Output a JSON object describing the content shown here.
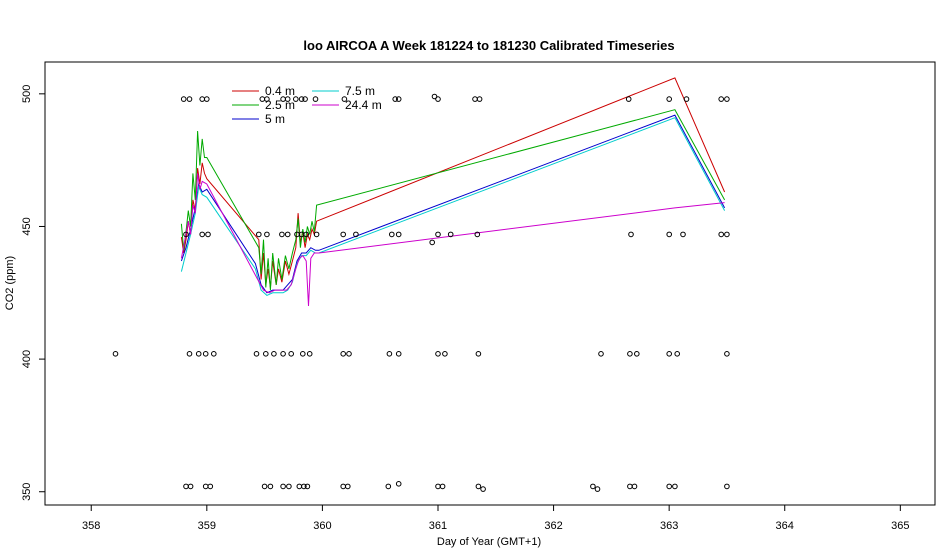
{
  "chart_data": {
    "type": "line",
    "title": "loo AIRCOA A  Week 181224 to 181230  Calibrated Timeseries",
    "xlabel": "Day of Year (GMT+1)",
    "ylabel": "CO2 (ppm)",
    "xlim": [
      357.6,
      365.3
    ],
    "ylim": [
      345,
      512
    ],
    "x_ticks": [
      358,
      359,
      360,
      361,
      362,
      363,
      364,
      365
    ],
    "y_ticks": [
      350,
      400,
      450,
      500
    ],
    "legend_position": "top-left",
    "series": [
      {
        "name": "0.4 m",
        "color": "#cc0000",
        "points": [
          [
            358.78,
            446
          ],
          [
            358.8,
            440
          ],
          [
            358.82,
            445
          ],
          [
            358.84,
            452
          ],
          [
            358.86,
            447
          ],
          [
            358.88,
            460
          ],
          [
            358.9,
            456
          ],
          [
            358.92,
            472
          ],
          [
            358.94,
            466
          ],
          [
            358.96,
            474
          ],
          [
            358.98,
            470
          ],
          [
            359.0,
            468
          ],
          [
            359.45,
            445
          ],
          [
            359.47,
            430
          ],
          [
            359.49,
            440
          ],
          [
            359.51,
            428
          ],
          [
            359.53,
            434
          ],
          [
            359.55,
            427
          ],
          [
            359.57,
            437
          ],
          [
            359.6,
            428
          ],
          [
            359.62,
            434
          ],
          [
            359.65,
            429
          ],
          [
            359.68,
            437
          ],
          [
            359.71,
            432
          ],
          [
            359.74,
            437
          ],
          [
            359.77,
            442
          ],
          [
            359.79,
            455
          ],
          [
            359.81,
            444
          ],
          [
            359.83,
            448
          ],
          [
            359.85,
            442
          ],
          [
            359.87,
            447
          ],
          [
            359.89,
            445
          ],
          [
            359.91,
            449
          ],
          [
            359.93,
            447
          ],
          [
            359.95,
            452
          ],
          [
            363.05,
            506
          ],
          [
            363.48,
            463
          ]
        ]
      },
      {
        "name": "2.5 m",
        "color": "#00aa00",
        "points": [
          [
            358.78,
            451
          ],
          [
            358.8,
            441
          ],
          [
            358.82,
            448
          ],
          [
            358.84,
            456
          ],
          [
            358.86,
            450
          ],
          [
            358.88,
            470
          ],
          [
            358.9,
            460
          ],
          [
            358.92,
            486
          ],
          [
            358.94,
            473
          ],
          [
            358.96,
            483
          ],
          [
            358.98,
            476
          ],
          [
            359.0,
            476
          ],
          [
            359.45,
            442
          ],
          [
            359.47,
            432
          ],
          [
            359.49,
            445
          ],
          [
            359.51,
            427
          ],
          [
            359.53,
            438
          ],
          [
            359.55,
            426
          ],
          [
            359.57,
            440
          ],
          [
            359.6,
            428
          ],
          [
            359.62,
            438
          ],
          [
            359.65,
            430
          ],
          [
            359.68,
            439
          ],
          [
            359.71,
            434
          ],
          [
            359.74,
            440
          ],
          [
            359.77,
            445
          ],
          [
            359.79,
            453
          ],
          [
            359.81,
            442
          ],
          [
            359.83,
            449
          ],
          [
            359.85,
            444
          ],
          [
            359.87,
            450
          ],
          [
            359.89,
            447
          ],
          [
            359.91,
            452
          ],
          [
            359.93,
            448
          ],
          [
            359.95,
            458
          ],
          [
            363.05,
            494
          ],
          [
            363.48,
            460
          ]
        ]
      },
      {
        "name": "5 m",
        "color": "#0000cc",
        "points": [
          [
            358.78,
            437
          ],
          [
            358.82,
            442
          ],
          [
            358.86,
            449
          ],
          [
            358.9,
            457
          ],
          [
            358.93,
            466
          ],
          [
            358.96,
            463
          ],
          [
            359.0,
            464
          ],
          [
            359.42,
            436
          ],
          [
            359.47,
            428
          ],
          [
            359.52,
            425
          ],
          [
            359.57,
            426
          ],
          [
            359.62,
            426
          ],
          [
            359.66,
            426
          ],
          [
            359.7,
            428
          ],
          [
            359.74,
            430
          ],
          [
            359.78,
            437
          ],
          [
            359.82,
            440
          ],
          [
            359.86,
            440
          ],
          [
            359.9,
            442
          ],
          [
            359.94,
            441
          ],
          [
            359.97,
            441
          ],
          [
            363.05,
            492
          ],
          [
            363.48,
            457
          ]
        ]
      },
      {
        "name": "7.5 m",
        "color": "#00cccc",
        "points": [
          [
            358.78,
            433
          ],
          [
            358.82,
            440
          ],
          [
            358.86,
            447
          ],
          [
            358.9,
            455
          ],
          [
            358.93,
            465
          ],
          [
            358.96,
            462
          ],
          [
            359.0,
            461
          ],
          [
            359.42,
            434
          ],
          [
            359.47,
            426
          ],
          [
            359.52,
            424
          ],
          [
            359.57,
            425
          ],
          [
            359.62,
            425
          ],
          [
            359.66,
            425
          ],
          [
            359.7,
            426
          ],
          [
            359.74,
            429
          ],
          [
            359.78,
            436
          ],
          [
            359.82,
            439
          ],
          [
            359.86,
            439
          ],
          [
            359.9,
            441
          ],
          [
            359.94,
            440
          ],
          [
            359.97,
            440
          ],
          [
            363.05,
            491
          ],
          [
            363.48,
            456
          ]
        ]
      },
      {
        "name": "24.4 m",
        "color": "#cc00cc",
        "points": [
          [
            358.78,
            438
          ],
          [
            358.81,
            445
          ],
          [
            358.84,
            452
          ],
          [
            358.86,
            447
          ],
          [
            358.88,
            458
          ],
          [
            358.9,
            455
          ],
          [
            358.92,
            470
          ],
          [
            358.94,
            464
          ],
          [
            358.96,
            467
          ],
          [
            359.0,
            466
          ],
          [
            359.44,
            430
          ],
          [
            359.49,
            426
          ],
          [
            359.54,
            425
          ],
          [
            359.59,
            426
          ],
          [
            359.64,
            426
          ],
          [
            359.69,
            426
          ],
          [
            359.73,
            428
          ],
          [
            359.77,
            434
          ],
          [
            359.8,
            438
          ],
          [
            359.83,
            439
          ],
          [
            359.86,
            437
          ],
          [
            359.88,
            420
          ],
          [
            359.9,
            438
          ],
          [
            359.93,
            440
          ],
          [
            359.97,
            440
          ],
          [
            363.05,
            457
          ],
          [
            363.48,
            459
          ]
        ]
      }
    ],
    "scatter": {
      "marker": "open-circle",
      "points": [
        [
          358.21,
          402
        ],
        [
          358.8,
          498
        ],
        [
          358.85,
          498
        ],
        [
          358.82,
          447
        ],
        [
          358.85,
          402
        ],
        [
          358.93,
          402
        ],
        [
          358.99,
          402
        ],
        [
          359.06,
          402
        ],
        [
          358.82,
          352
        ],
        [
          358.86,
          352
        ],
        [
          358.99,
          352
        ],
        [
          359.03,
          352
        ],
        [
          358.96,
          498
        ],
        [
          359.0,
          498
        ],
        [
          358.96,
          447
        ],
        [
          359.01,
          447
        ],
        [
          359.43,
          402
        ],
        [
          359.51,
          402
        ],
        [
          359.58,
          402
        ],
        [
          359.66,
          402
        ],
        [
          359.73,
          402
        ],
        [
          359.83,
          402
        ],
        [
          359.89,
          402
        ],
        [
          359.45,
          447
        ],
        [
          359.52,
          447
        ],
        [
          359.65,
          447
        ],
        [
          359.7,
          447
        ],
        [
          359.78,
          447
        ],
        [
          359.82,
          447
        ],
        [
          359.86,
          447
        ],
        [
          359.95,
          447
        ],
        [
          359.48,
          498
        ],
        [
          359.52,
          498
        ],
        [
          359.66,
          498
        ],
        [
          359.7,
          498
        ],
        [
          359.77,
          498
        ],
        [
          359.82,
          498
        ],
        [
          359.85,
          498
        ],
        [
          359.94,
          498
        ],
        [
          359.5,
          352
        ],
        [
          359.55,
          352
        ],
        [
          359.66,
          352
        ],
        [
          359.71,
          352
        ],
        [
          359.8,
          352
        ],
        [
          359.84,
          352
        ],
        [
          359.87,
          352
        ],
        [
          360.18,
          447
        ],
        [
          360.29,
          447
        ],
        [
          360.19,
          498
        ],
        [
          360.18,
          402
        ],
        [
          360.23,
          402
        ],
        [
          360.18,
          352
        ],
        [
          360.22,
          352
        ],
        [
          360.57,
          352
        ],
        [
          360.66,
          353
        ],
        [
          360.58,
          402
        ],
        [
          360.66,
          402
        ],
        [
          360.6,
          447
        ],
        [
          360.66,
          447
        ],
        [
          360.63,
          498
        ],
        [
          360.66,
          498
        ],
        [
          360.97,
          499
        ],
        [
          361.0,
          498
        ],
        [
          360.95,
          444
        ],
        [
          361.0,
          447
        ],
        [
          361.11,
          447
        ],
        [
          361.0,
          402
        ],
        [
          361.06,
          402
        ],
        [
          361.0,
          352
        ],
        [
          361.04,
          352
        ],
        [
          361.34,
          447
        ],
        [
          361.32,
          498
        ],
        [
          361.36,
          498
        ],
        [
          361.35,
          402
        ],
        [
          361.35,
          352
        ],
        [
          361.39,
          351
        ],
        [
          362.34,
          352
        ],
        [
          362.38,
          351
        ],
        [
          362.41,
          402
        ],
        [
          362.65,
          498
        ],
        [
          362.67,
          447
        ],
        [
          362.66,
          402
        ],
        [
          362.72,
          402
        ],
        [
          362.66,
          352
        ],
        [
          362.7,
          352
        ],
        [
          363.0,
          498
        ],
        [
          363.0,
          447
        ],
        [
          363.12,
          447
        ],
        [
          363.0,
          402
        ],
        [
          363.07,
          402
        ],
        [
          363.0,
          352
        ],
        [
          363.05,
          352
        ],
        [
          363.15,
          498
        ],
        [
          363.45,
          498
        ],
        [
          363.5,
          498
        ],
        [
          363.45,
          447
        ],
        [
          363.5,
          447
        ],
        [
          363.5,
          402
        ],
        [
          363.5,
          352
        ]
      ]
    }
  }
}
